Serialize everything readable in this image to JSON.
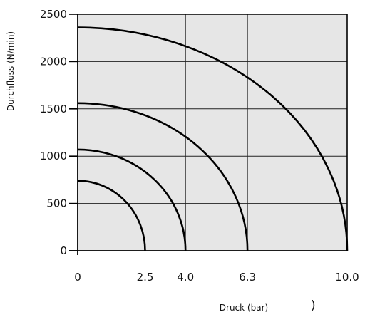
{
  "chart_data": {
    "type": "line",
    "title": "",
    "xlabel": "Druck (bar)",
    "ylabel": "Durchfluss (N/min)",
    "xlim": [
      0,
      10
    ],
    "ylim": [
      0,
      2500
    ],
    "x_ticks": [
      "0",
      "2.5",
      "4.0",
      "6.3",
      "10.0"
    ],
    "x_tick_values": [
      0,
      2.5,
      4.0,
      6.3,
      10.0
    ],
    "y_ticks": [
      "0",
      "500",
      "1000",
      "1500",
      "2000",
      "2500"
    ],
    "y_tick_values": [
      0,
      500,
      1000,
      1500,
      2000,
      2500
    ],
    "grid": true,
    "plot_background": "#e6e6e6",
    "line_color": "#000000",
    "stray_char": ")",
    "series": [
      {
        "curve": "quarter-ellipse",
        "x_max": 2.5,
        "y_max": 740
      },
      {
        "curve": "quarter-ellipse",
        "x_max": 4.0,
        "y_max": 1070
      },
      {
        "curve": "quarter-ellipse",
        "x_max": 6.3,
        "y_max": 1560
      },
      {
        "curve": "quarter-ellipse",
        "x_max": 10.0,
        "y_max": 2360
      }
    ]
  }
}
